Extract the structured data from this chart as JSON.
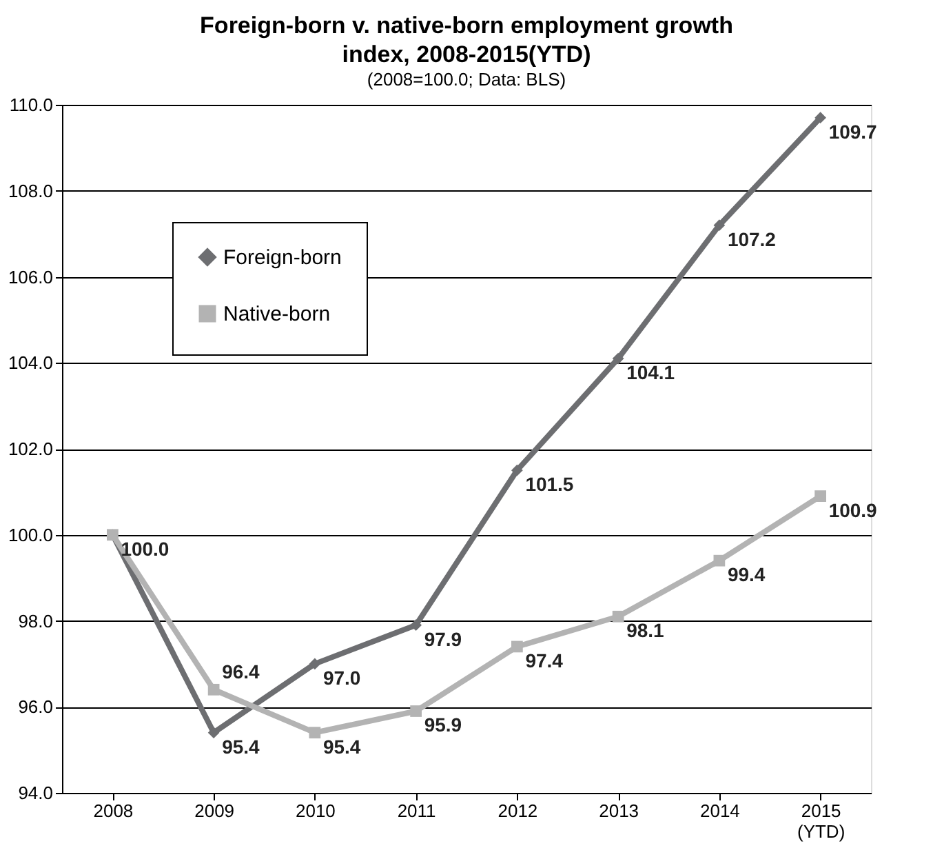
{
  "chart_data": {
    "type": "line",
    "title": "Foreign-born v. native-born employment growth index, 2008-2015(YTD)",
    "subtitle": "(2008=100.0; Data: BLS)",
    "categories": [
      "2008",
      "2009",
      "2010",
      "2011",
      "2012",
      "2013",
      "2014",
      "2015 (YTD)"
    ],
    "series": [
      {
        "name": "Foreign-born",
        "color": "#6d6e71",
        "marker": "diamond",
        "values": [
          100.0,
          95.4,
          97.0,
          97.9,
          101.5,
          104.1,
          107.2,
          109.7
        ],
        "value_labels": [
          "100.0",
          "95.4",
          "97.0",
          "97.9",
          "101.5",
          "104.1",
          "107.2",
          "109.7"
        ]
      },
      {
        "name": "Native-born",
        "color": "#b3b3b3",
        "marker": "square",
        "values": [
          100.0,
          96.4,
          95.4,
          95.9,
          97.4,
          98.1,
          99.4,
          100.9
        ],
        "value_labels": [
          null,
          "96.4",
          "95.4",
          "95.9",
          "97.4",
          "98.1",
          "99.4",
          "100.9"
        ]
      }
    ],
    "ylim": [
      94.0,
      110.0
    ],
    "yticks": [
      {
        "value": 94,
        "label": "94.0"
      },
      {
        "value": 96,
        "label": "96.0"
      },
      {
        "value": 98,
        "label": "98.0"
      },
      {
        "value": 100,
        "label": "100.0"
      },
      {
        "value": 102,
        "label": "102.0"
      },
      {
        "value": 104,
        "label": "104.0"
      },
      {
        "value": 106,
        "label": "106.0"
      },
      {
        "value": 108,
        "label": "108.0"
      },
      {
        "value": 110,
        "label": "110.0"
      }
    ],
    "grid": "y",
    "legend": "top left"
  }
}
